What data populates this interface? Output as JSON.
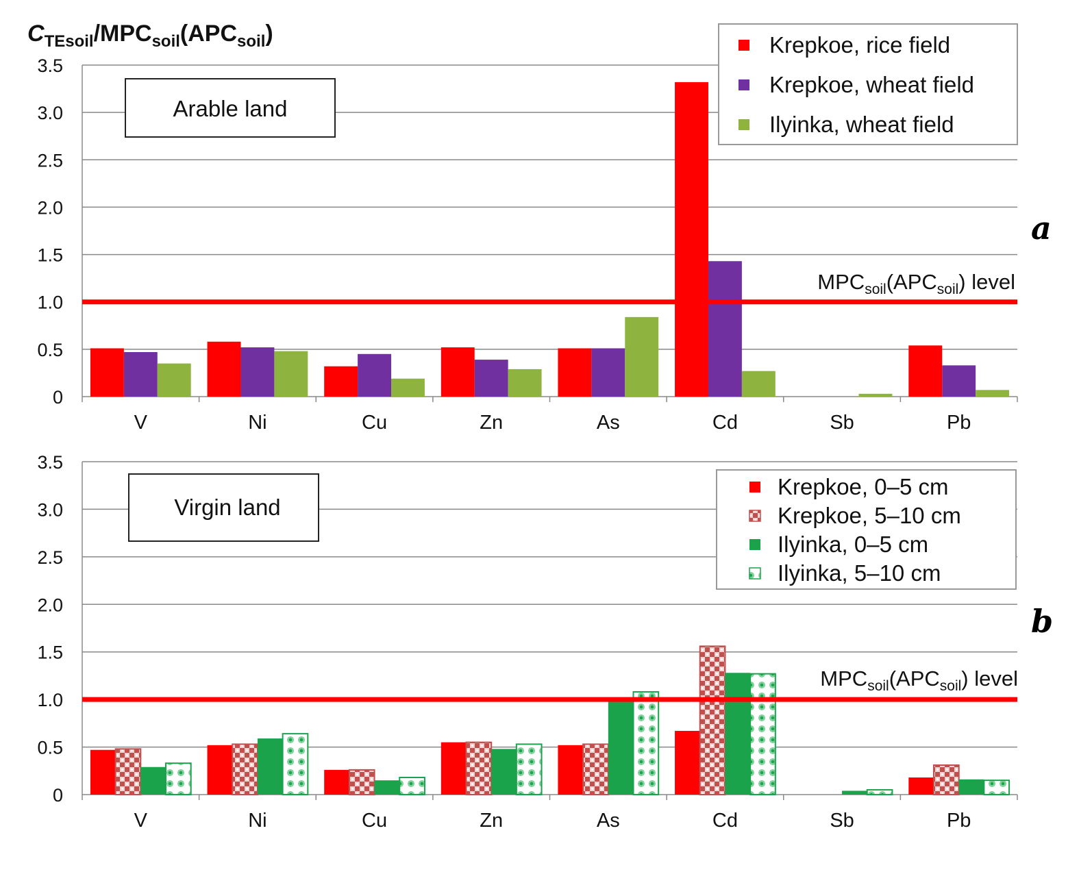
{
  "y_axis_title": {
    "parts": [
      {
        "text": "C",
        "italic": true,
        "sub": false
      },
      {
        "text": "TEsoil",
        "italic": false,
        "sub": true
      },
      {
        "text": "/MPC",
        "italic": false,
        "sub": false
      },
      {
        "text": "soil",
        "italic": false,
        "sub": true
      },
      {
        "text": "(APC",
        "italic": false,
        "sub": false
      },
      {
        "text": "soil",
        "italic": false,
        "sub": true
      },
      {
        "text": ")",
        "italic": false,
        "sub": false
      }
    ]
  },
  "mpc_label": {
    "parts": [
      {
        "text": "MPC",
        "sub": false
      },
      {
        "text": "soil",
        "sub": true
      },
      {
        "text": "(APC",
        "sub": false
      },
      {
        "text": "soil",
        "sub": true
      },
      {
        "text": ") level",
        "sub": false
      }
    ]
  },
  "colors": {
    "red": "#ff0000",
    "purple": "#7030a0",
    "olive": "#8fb33f",
    "green": "#1aa34a",
    "grid": "#888888",
    "pattern_red": "#c0504d",
    "pattern_green": "#1aa34a"
  },
  "chart_data": [
    {
      "type": "bar",
      "panel_label": "a",
      "box_label": "Arable land",
      "categories": [
        "V",
        "Ni",
        "Cu",
        "Zn",
        "As",
        "Cd",
        "Sb",
        "Pb"
      ],
      "ylim": [
        0,
        3.5
      ],
      "yticks": [
        "0",
        "0.5",
        "1.0",
        "1.5",
        "2.0",
        "2.5",
        "3.0",
        "3.5"
      ],
      "reference_line": 1.0,
      "legend_position": "top-right",
      "grid": true,
      "series": [
        {
          "name": "Krepkoe, rice field",
          "color": "#ff0000",
          "pattern": "solid",
          "values": [
            0.51,
            0.58,
            0.32,
            0.52,
            0.51,
            3.32,
            0.0,
            0.54
          ]
        },
        {
          "name": "Krepkoe, wheat field",
          "color": "#7030a0",
          "pattern": "solid",
          "values": [
            0.47,
            0.52,
            0.45,
            0.39,
            0.51,
            1.43,
            0.0,
            0.33
          ]
        },
        {
          "name": "Ilyinka, wheat field",
          "color": "#8fb33f",
          "pattern": "solid",
          "values": [
            0.35,
            0.48,
            0.19,
            0.29,
            0.84,
            0.27,
            0.03,
            0.07
          ]
        }
      ]
    },
    {
      "type": "bar",
      "panel_label": "b",
      "box_label": "Virgin land",
      "categories": [
        "V",
        "Ni",
        "Cu",
        "Zn",
        "As",
        "Cd",
        "Sb",
        "Pb"
      ],
      "ylim": [
        0,
        3.5
      ],
      "yticks": [
        "0",
        "0.5",
        "1.0",
        "1.5",
        "2.0",
        "2.5",
        "3.0",
        "3.5"
      ],
      "reference_line": 1.0,
      "legend_position": "top-right",
      "grid": true,
      "series": [
        {
          "name": "Krepkoe, 0–5 cm",
          "color": "#ff0000",
          "pattern": "solid",
          "values": [
            0.47,
            0.52,
            0.26,
            0.55,
            0.52,
            0.67,
            0.0,
            0.18
          ]
        },
        {
          "name": "Krepkoe, 5–10 cm",
          "color": "#c0504d",
          "pattern": "checker",
          "values": [
            0.48,
            0.53,
            0.26,
            0.55,
            0.53,
            1.56,
            0.0,
            0.31
          ]
        },
        {
          "name": "Ilyinka, 0–5 cm",
          "color": "#1aa34a",
          "pattern": "solid",
          "values": [
            0.29,
            0.59,
            0.15,
            0.48,
            0.99,
            1.28,
            0.04,
            0.16
          ]
        },
        {
          "name": "Ilyinka, 5–10 cm",
          "color": "#1aa34a",
          "pattern": "dots",
          "values": [
            0.33,
            0.64,
            0.18,
            0.53,
            1.08,
            1.27,
            0.05,
            0.15
          ]
        }
      ]
    }
  ]
}
